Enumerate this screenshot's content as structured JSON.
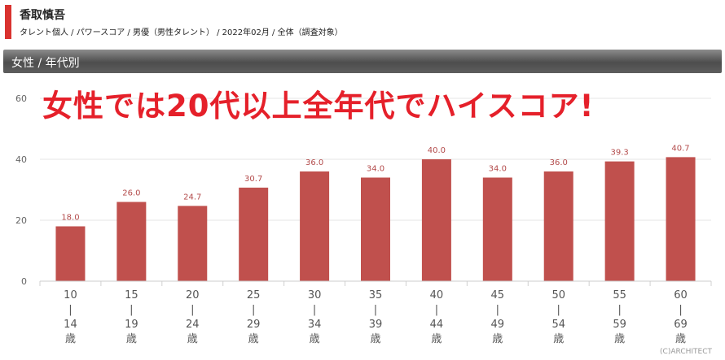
{
  "header": {
    "title": "香取慎吾",
    "subtitle": "タレント個人 / パワースコア / 男優（男性タレント） / 2022年02月 / 全体（調査対象）"
  },
  "section": {
    "title": "女性 / 年代別"
  },
  "overlay_text": "女性では20代以上全年代でハイスコア!",
  "copyright": "(C)ARCHITECT",
  "colors": {
    "bar": "#c0504d",
    "accent": "#d9322f",
    "overlay": "#e5202a"
  },
  "chart_data": {
    "type": "bar",
    "categories": [
      [
        "10",
        "|",
        "14",
        "歳"
      ],
      [
        "15",
        "|",
        "19",
        "歳"
      ],
      [
        "20",
        "|",
        "24",
        "歳"
      ],
      [
        "25",
        "|",
        "29",
        "歳"
      ],
      [
        "30",
        "|",
        "34",
        "歳"
      ],
      [
        "35",
        "|",
        "39",
        "歳"
      ],
      [
        "40",
        "|",
        "44",
        "歳"
      ],
      [
        "45",
        "|",
        "49",
        "歳"
      ],
      [
        "50",
        "|",
        "54",
        "歳"
      ],
      [
        "55",
        "|",
        "59",
        "歳"
      ],
      [
        "60",
        "|",
        "69",
        "歳"
      ]
    ],
    "values": [
      18.0,
      26.0,
      24.7,
      30.7,
      36.0,
      34.0,
      40.0,
      34.0,
      36.0,
      39.3,
      40.7
    ],
    "value_labels": [
      "18.0",
      "26.0",
      "24.7",
      "30.7",
      "36.0",
      "34.0",
      "40.0",
      "34.0",
      "36.0",
      "39.3",
      "40.7"
    ],
    "yticks": [
      0,
      20,
      40,
      60
    ],
    "ylim": [
      0,
      60
    ],
    "grid": true
  }
}
